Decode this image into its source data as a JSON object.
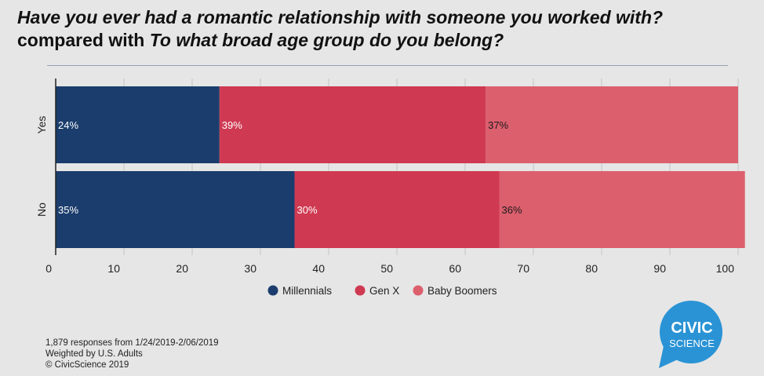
{
  "header": {
    "title_part1": "Have you ever had a romantic relationship with someone you worked with?",
    "title_connector": " compared with ",
    "title_part2": "To what broad age group do you belong?"
  },
  "chart_data": {
    "type": "bar",
    "orientation": "horizontal",
    "stacked": true,
    "categories": [
      "Yes",
      "No"
    ],
    "series": [
      {
        "name": "Millennials",
        "values": [
          24,
          35
        ],
        "labels": [
          "24%",
          "35%"
        ],
        "color": "#1b3d6d"
      },
      {
        "name": "Gen X",
        "values": [
          39,
          30
        ],
        "labels": [
          "39%",
          "30%"
        ],
        "color": "#cf3a52"
      },
      {
        "name": "Baby Boomers",
        "values": [
          37,
          36
        ],
        "labels": [
          "37%",
          "36%"
        ],
        "color": "#dc5f6e"
      }
    ],
    "xlim": [
      0,
      100
    ],
    "xticks": [
      0,
      10,
      20,
      30,
      40,
      50,
      60,
      70,
      80,
      90,
      100
    ],
    "grid": true,
    "legend_position": "bottom"
  },
  "footnote": {
    "line1": "1,879 responses from 1/24/2019-2/06/2019",
    "line2": "Weighted by U.S. Adults",
    "line3": "© CivicScience 2019"
  },
  "logo": {
    "line1": "CIVIC",
    "line2": "SCIENCE",
    "color": "#2a93d5"
  }
}
